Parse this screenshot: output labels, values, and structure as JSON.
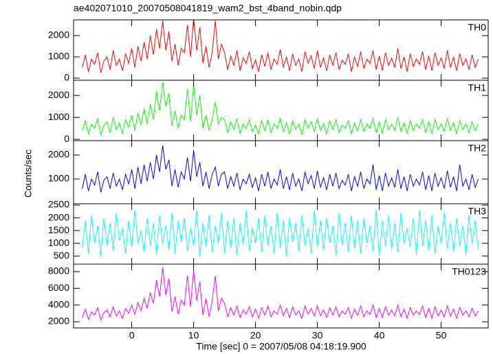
{
  "chart_data": {
    "type": "line",
    "title": "ae402071010_20070508041819_wam2_bst_4band_nobin.qdp",
    "x_label": "Time [sec] 0 = 2007/05/08 04:18:19.900",
    "y_label": "Counts/sec",
    "xlim": [
      -9.4,
      57.6
    ],
    "xticks": [
      0,
      10,
      20,
      30,
      40,
      50
    ],
    "x": [
      -8,
      -7.5,
      -7,
      -6.5,
      -6,
      -5.5,
      -5,
      -4.5,
      -4,
      -3.5,
      -3,
      -2.5,
      -2,
      -1.5,
      -1,
      -0.5,
      0,
      0.5,
      1,
      1.5,
      2,
      2.5,
      3,
      3.5,
      4,
      4.5,
      5,
      5.5,
      6,
      6.5,
      7,
      7.5,
      8,
      8.5,
      9,
      9.5,
      10,
      10.5,
      11,
      11.5,
      12,
      12.5,
      13,
      13.5,
      14,
      14.5,
      15,
      15.5,
      16,
      16.5,
      17,
      17.5,
      18,
      18.5,
      19,
      19.5,
      20,
      20.5,
      21,
      21.5,
      22,
      22.5,
      23,
      23.5,
      24,
      24.5,
      25,
      25.5,
      26,
      26.5,
      27,
      27.5,
      28,
      28.5,
      29,
      29.5,
      30,
      30.5,
      31,
      31.5,
      32,
      32.5,
      33,
      33.5,
      34,
      34.5,
      35,
      35.5,
      36,
      36.5,
      37,
      37.5,
      38,
      38.5,
      39,
      39.5,
      40,
      40.5,
      41,
      41.5,
      42,
      42.5,
      43,
      43.5,
      44,
      44.5,
      45,
      45.5,
      46,
      46.5,
      47,
      47.5,
      48,
      48.5,
      49,
      49.5,
      50,
      50.5,
      51,
      51.5,
      52,
      52.5,
      53,
      53.5,
      54,
      54.5,
      55,
      55.5,
      56
    ],
    "panels": [
      {
        "label": "TH0",
        "color": "#ff0000",
        "ylim": [
          -100,
          2740
        ],
        "yticks": [
          0,
          1000,
          2000
        ],
        "values": [
          500,
          1100,
          300,
          900,
          650,
          1200,
          250,
          800,
          1000,
          400,
          1300,
          600,
          900,
          350,
          1150,
          700,
          1400,
          500,
          1500,
          800,
          1700,
          900,
          2000,
          1100,
          2300,
          1400,
          2700,
          1300,
          2200,
          800,
          1600,
          600,
          1400,
          1200,
          2500,
          1000,
          2800,
          1300,
          2400,
          700,
          1500,
          500,
          1200,
          2700,
          900,
          1600,
          1200,
          400,
          1050,
          600,
          1300,
          350,
          950,
          700,
          1250,
          450,
          850,
          300,
          1100,
          550,
          1200,
          400,
          900,
          650,
          1350,
          500,
          1000,
          350,
          1150,
          600,
          900,
          300,
          1250,
          700,
          1050,
          450,
          1300,
          500,
          950,
          350,
          1100,
          600,
          1200,
          400,
          850,
          650,
          1150,
          300,
          1000,
          550,
          1250,
          450,
          900,
          700,
          1300,
          400,
          1050,
          350,
          1200,
          600,
          950,
          500,
          1400,
          450,
          1000,
          300,
          1150,
          550,
          900,
          650,
          1250,
          400,
          1050,
          350,
          1200,
          600,
          950,
          450,
          1300,
          500,
          1000,
          350,
          1150,
          600,
          900,
          400,
          1100,
          500,
          900
        ]
      },
      {
        "label": "TH1",
        "color": "#00ff00",
        "ylim": [
          -60,
          2690
        ],
        "yticks": [
          0,
          1000,
          2000
        ],
        "values": [
          400,
          850,
          250,
          700,
          500,
          950,
          200,
          650,
          800,
          300,
          1000,
          450,
          750,
          250,
          900,
          550,
          1100,
          400,
          1200,
          650,
          1400,
          700,
          1600,
          900,
          2200,
          1300,
          2600,
          1500,
          2100,
          600,
          1300,
          500,
          1100,
          900,
          2300,
          800,
          2500,
          1100,
          2000,
          500,
          1100,
          400,
          900,
          1700,
          700,
          1000,
          900,
          300,
          800,
          450,
          950,
          250,
          700,
          500,
          900,
          350,
          650,
          250,
          850,
          400,
          900,
          300,
          700,
          500,
          950,
          350,
          750,
          250,
          850,
          450,
          700,
          200,
          900,
          500,
          800,
          350,
          950,
          400,
          700,
          250,
          850,
          450,
          900,
          300,
          650,
          500,
          850,
          250,
          750,
          400,
          900,
          350,
          700,
          500,
          950,
          300,
          800,
          250,
          900,
          450,
          700,
          400,
          1000,
          350,
          750,
          250,
          850,
          400,
          700,
          500,
          900,
          300,
          800,
          250,
          900,
          450,
          700,
          350,
          950,
          400,
          750,
          250,
          850,
          450,
          700,
          300,
          800,
          400,
          700
        ]
      },
      {
        "label": "TH2",
        "color": "#0000ff",
        "ylim": [
          -30,
          2600
        ],
        "yticks": [
          1000,
          2000
        ],
        "values": [
          600,
          1200,
          500,
          1000,
          750,
          1300,
          450,
          950,
          1100,
          600,
          1250,
          700,
          1000,
          550,
          1200,
          800,
          1400,
          600,
          1500,
          800,
          1600,
          900,
          1700,
          1000,
          2000,
          1300,
          2400,
          1400,
          1800,
          700,
          1400,
          650,
          1300,
          1000,
          1900,
          900,
          2200,
          1100,
          1700,
          700,
          1300,
          600,
          1200,
          1500,
          700,
          1200,
          1300,
          600,
          1100,
          700,
          1250,
          550,
          1000,
          800,
          1200,
          650,
          1050,
          500,
          1200,
          700,
          1300,
          600,
          1000,
          750,
          1400,
          600,
          1100,
          550,
          1250,
          700,
          1000,
          500,
          1300,
          800,
          1150,
          600,
          1350,
          650,
          1050,
          550,
          1200,
          700,
          1250,
          600,
          950,
          750,
          1200,
          500,
          1100,
          700,
          1300,
          600,
          1000,
          800,
          1600,
          550,
          1150,
          500,
          1250,
          700,
          1050,
          650,
          1400,
          600,
          1100,
          500,
          1200,
          700,
          1000,
          750,
          1300,
          550,
          1150,
          500,
          1250,
          700,
          1050,
          600,
          1350,
          650,
          1100,
          500,
          1600,
          700,
          1000,
          550,
          1200,
          650,
          1000
        ]
      },
      {
        "label": "TH3",
        "color": "#00ffff",
        "ylim": [
          180,
          2555
        ],
        "yticks": [
          500,
          1000,
          1500,
          2000,
          2500
        ],
        "values": [
          800,
          1900,
          600,
          2100,
          1000,
          1700,
          500,
          2000,
          900,
          1800,
          700,
          2200,
          1100,
          1600,
          600,
          1900,
          850,
          2300,
          1000,
          1500,
          650,
          2000,
          900,
          1800,
          550,
          2100,
          1000,
          1700,
          750,
          2200,
          600,
          1900,
          1050,
          2000,
          700,
          1600,
          900,
          2300,
          500,
          1800,
          850,
          2100,
          650,
          1700,
          1000,
          2200,
          600,
          1900,
          800,
          2000,
          550,
          1800,
          950,
          2300,
          700,
          1600,
          1000,
          2000,
          650,
          2100,
          900,
          1700,
          600,
          2200,
          800,
          1900,
          500,
          2000,
          1050,
          1800,
          700,
          2100,
          900,
          1600,
          600,
          2300,
          850,
          1900,
          750,
          2000,
          1000,
          1700,
          550,
          2200,
          900,
          1800,
          650,
          2100,
          800,
          1900,
          600,
          2000,
          1000,
          1700,
          700,
          2300,
          500,
          1900,
          900,
          2100,
          750,
          1800,
          650,
          2200,
          1000,
          1600,
          850,
          2000,
          550,
          2300,
          900,
          1900,
          700,
          2100,
          600,
          1700,
          1000,
          2200,
          800,
          1800,
          650,
          2000,
          900,
          1700,
          550,
          2100,
          1000,
          1900,
          750
        ]
      },
      {
        "label": "TH0123",
        "color": "#ff00ff",
        "ylim": [
          1260,
          8900
        ],
        "yticks": [
          2000,
          4000,
          6000,
          8000
        ],
        "values": [
          2500,
          3500,
          2300,
          3200,
          2800,
          3700,
          2200,
          3100,
          3400,
          2600,
          3800,
          2700,
          3300,
          2400,
          3600,
          3000,
          4000,
          2900,
          4300,
          3300,
          4800,
          3600,
          5500,
          4200,
          7000,
          5000,
          8500,
          5200,
          7200,
          3200,
          5000,
          2900,
          4600,
          4000,
          7500,
          3800,
          8200,
          4500,
          6800,
          2800,
          4800,
          2600,
          4500,
          7500,
          3300,
          4800,
          4200,
          2600,
          3700,
          2800,
          3900,
          2500,
          3400,
          2900,
          3800,
          2600,
          3500,
          2400,
          3700,
          2800,
          3900,
          2600,
          3300,
          2900,
          4000,
          2700,
          3600,
          2500,
          3800,
          2800,
          3300,
          2400,
          3900,
          2900,
          3600,
          2700,
          3900,
          2700,
          3400,
          2500,
          3700,
          2800,
          3800,
          2600,
          3300,
          2900,
          3700,
          2400,
          3500,
          2800,
          3900,
          2600,
          3300,
          2900,
          4000,
          2500,
          3600,
          2500,
          3800,
          2800,
          3400,
          2700,
          4000,
          2600,
          3500,
          2400,
          3700,
          2800,
          3300,
          2900,
          3900,
          2500,
          3600,
          2400,
          3800,
          2700,
          3400,
          2600,
          3900,
          2700,
          3500,
          2400,
          3700,
          2800,
          3300,
          2600,
          3600,
          2700,
          3300
        ]
      }
    ]
  }
}
